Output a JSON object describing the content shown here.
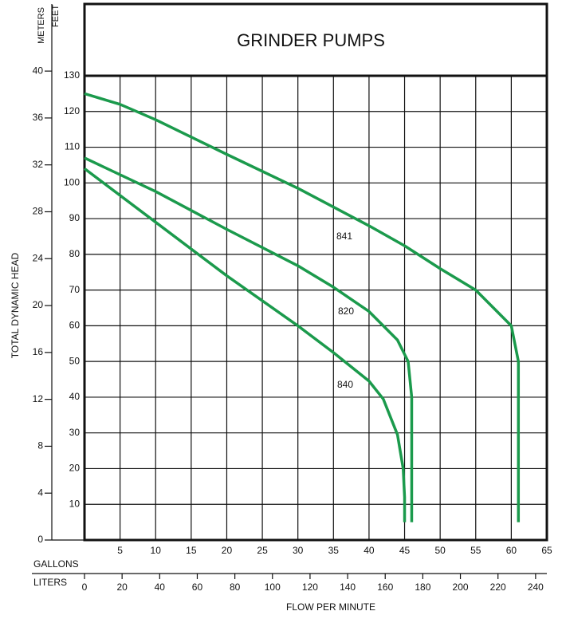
{
  "chart_data": {
    "type": "line",
    "title": "GRINDER PUMPS",
    "y_label": "TOTAL DYNAMIC HEAD",
    "y_unit": "FEET",
    "y2_unit": "METERS",
    "x_unit": "GALLONS",
    "x2_unit": "LITERS",
    "x_label": "FLOW PER MINUTE",
    "xlim": [
      0,
      65
    ],
    "xticks": [
      5,
      10,
      15,
      20,
      25,
      30,
      35,
      40,
      45,
      50,
      55,
      60,
      65
    ],
    "x2lim": [
      0,
      246
    ],
    "x2ticks": [
      0,
      20,
      40,
      60,
      80,
      100,
      120,
      140,
      160,
      180,
      200,
      220,
      240
    ],
    "ylim": [
      0,
      130
    ],
    "yticks": [
      10,
      20,
      30,
      40,
      50,
      60,
      70,
      80,
      90,
      100,
      110,
      120,
      130
    ],
    "y2lim": [
      0,
      39.6
    ],
    "y2ticks": [
      0,
      4,
      8,
      12,
      16,
      20,
      24,
      28,
      32,
      36,
      40
    ],
    "grid": true,
    "series": [
      {
        "name": "841",
        "color": "#1b9a4c",
        "x": [
          0,
          5,
          10,
          20,
          30,
          40,
          45,
          50,
          55,
          60,
          61,
          61
        ],
        "values": [
          125,
          122,
          117.7,
          108,
          98.5,
          88,
          82.4,
          76,
          70,
          60,
          50,
          5
        ]
      },
      {
        "name": "820",
        "color": "#1b9a4c",
        "x": [
          0,
          10,
          20,
          30,
          35,
          40,
          44,
          45.5,
          46,
          46
        ],
        "values": [
          107,
          97.6,
          87,
          76.8,
          70.8,
          64,
          56,
          50,
          40,
          5
        ]
      },
      {
        "name": "840",
        "color": "#1b9a4c",
        "x": [
          0,
          10,
          20,
          30,
          35,
          40,
          42,
          44,
          44.8,
          45,
          45
        ],
        "values": [
          104,
          89,
          74,
          60,
          52.5,
          44.5,
          39.5,
          29.5,
          20,
          12,
          5
        ]
      }
    ]
  }
}
